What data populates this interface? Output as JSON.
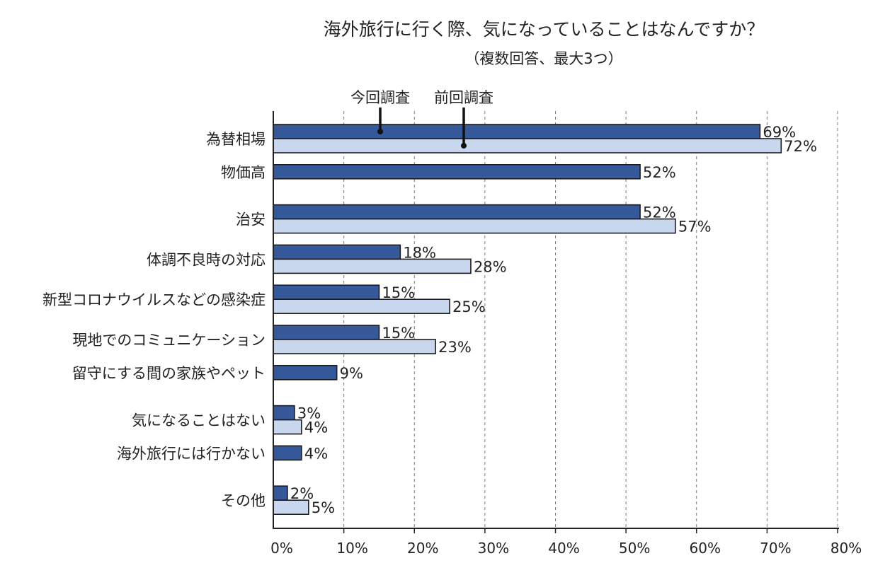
{
  "chart_data": {
    "type": "bar",
    "orientation": "horizontal",
    "title": "海外旅行に行く際、気になっていることはなんですか？",
    "subtitle": "（複数回答、最大3つ）",
    "categories": [
      "為替相場",
      "物価高",
      "治安",
      "体調不良時の対応",
      "新型コロナウイルスなどの感染症",
      "現地でのコミュニケーション",
      "留守にする間の家族やペット",
      "気になることはない",
      "海外旅行には行かない",
      "その他"
    ],
    "series": [
      {
        "name": "今回調査",
        "color": "#35599a",
        "values": [
          69,
          52,
          52,
          18,
          15,
          15,
          9,
          3,
          4,
          2
        ]
      },
      {
        "name": "前回調査",
        "color": "#c8d6ee",
        "values": [
          72,
          null,
          57,
          28,
          25,
          23,
          null,
          4,
          null,
          5
        ]
      }
    ],
    "value_suffix": "%",
    "xlim": [
      0,
      80
    ],
    "xticks": [
      0,
      10,
      20,
      30,
      40,
      50,
      60,
      70,
      80
    ],
    "xtick_labels": [
      "0%",
      "10%",
      "20%",
      "30%",
      "40%",
      "50%",
      "60%",
      "70%",
      "80%"
    ],
    "grid": "vertical-dashed",
    "legend": "top-left callouts"
  }
}
